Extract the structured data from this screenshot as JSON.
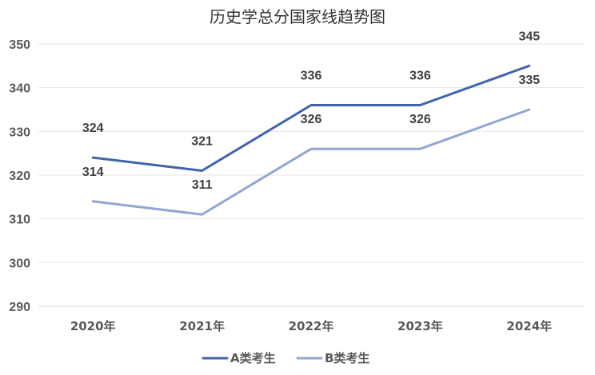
{
  "chart_data": {
    "type": "line",
    "title": "历史学总分国家线趋势图",
    "xlabel": "",
    "ylabel": "",
    "categories": [
      "2020年",
      "2021年",
      "2022年",
      "2023年",
      "2024年"
    ],
    "ylim": [
      290,
      350
    ],
    "yticks": [
      "290",
      "300",
      "310",
      "320",
      "330",
      "340",
      "350"
    ],
    "grid": true,
    "legend_position": "bottom",
    "series": [
      {
        "name": "A类考生",
        "values": [
          324,
          321,
          336,
          336,
          345
        ],
        "color": "#4165AB"
      },
      {
        "name": "B类考生",
        "values": [
          314,
          311,
          326,
          326,
          335
        ],
        "color": "#93A6D3"
      }
    ]
  }
}
